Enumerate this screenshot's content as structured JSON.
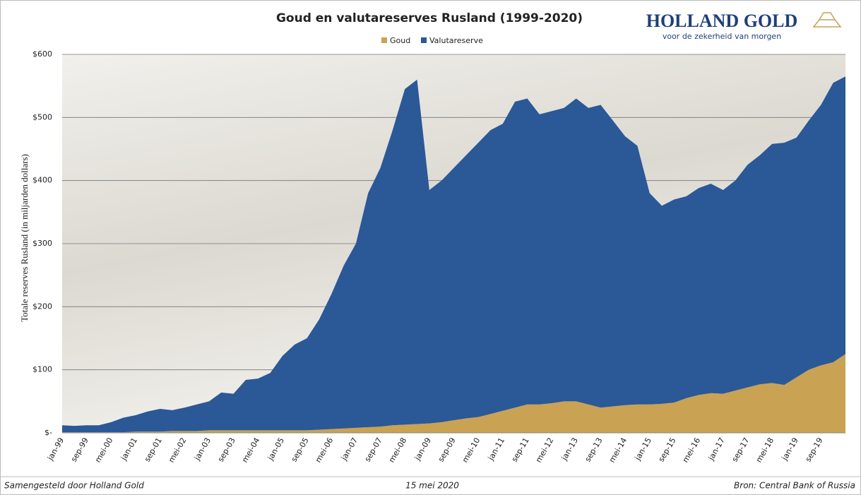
{
  "chart_data": {
    "type": "stacked-area",
    "title": "Goud en valutareserves Rusland (1999-2020)",
    "y_label": "Totale reserves Rusland (in miljarden dollars)",
    "categories": [
      "jan-99",
      null,
      "sep-99",
      null,
      "mei-00",
      null,
      "jan-01",
      null,
      "sep-01",
      null,
      "mei-02",
      null,
      "jan-03",
      null,
      "sep-03",
      null,
      "mei-04",
      null,
      "jan-05",
      null,
      "sep-05",
      null,
      "mei-06",
      null,
      "jan-07",
      null,
      "sep-07",
      null,
      "mei-08",
      null,
      "jan-09",
      null,
      "sep-09",
      null,
      "mei-10",
      null,
      "jan-11",
      null,
      "sep-11",
      null,
      "mei-12",
      null,
      "jan-13",
      null,
      "sep-13",
      null,
      "mei-14",
      null,
      "jan-15",
      null,
      "sep-15",
      null,
      "mei-16",
      null,
      "jan-17",
      null,
      "sep-17",
      null,
      "mei-18",
      null,
      "jan-19",
      null,
      "sep-19",
      null,
      null
    ],
    "series": [
      {
        "name": "Goud",
        "color": "#c9a253",
        "values": [
          1,
          1,
          1,
          1,
          1,
          1,
          2,
          2,
          2,
          3,
          3,
          3,
          4,
          4,
          4,
          4,
          4,
          4,
          4,
          4,
          4,
          5,
          6,
          7,
          8,
          9,
          10,
          12,
          13,
          14,
          15,
          17,
          20,
          23,
          25,
          30,
          35,
          40,
          45,
          45,
          47,
          50,
          50,
          45,
          40,
          42,
          44,
          45,
          45,
          46,
          48,
          55,
          60,
          63,
          62,
          67,
          72,
          77,
          79,
          76,
          88,
          100,
          107,
          112,
          125
        ]
      },
      {
        "name": "Valutareserve",
        "color": "#2b5897",
        "values": [
          11,
          10,
          11,
          11,
          16,
          23,
          26,
          32,
          36,
          33,
          37,
          42,
          46,
          60,
          58,
          80,
          82,
          91,
          118,
          136,
          146,
          175,
          214,
          258,
          292,
          371,
          410,
          468,
          532,
          546,
          370,
          383,
          400,
          417,
          435,
          450,
          455,
          485,
          485,
          460,
          463,
          465,
          480,
          470,
          480,
          453,
          426,
          410,
          335,
          314,
          322,
          320,
          328,
          332,
          323,
          333,
          353,
          363,
          379,
          384,
          380,
          395,
          413,
          443,
          440
        ]
      }
    ],
    "ylim": [
      0,
      600
    ],
    "yticks": [
      {
        "value": 0,
        "label": "$-"
      },
      {
        "value": 100,
        "label": "$100"
      },
      {
        "value": 200,
        "label": "$200"
      },
      {
        "value": 300,
        "label": "$300"
      },
      {
        "value": 400,
        "label": "$400"
      },
      {
        "value": 500,
        "label": "$500"
      },
      {
        "value": 600,
        "label": "$600"
      }
    ],
    "grid": true,
    "legend": "top"
  },
  "logo": {
    "name": "HOLLAND GOLD",
    "tagline": "voor de zekerheid van morgen"
  },
  "footer": {
    "left": "Samengesteld door Holland Gold",
    "center": "15 mei 2020",
    "right": "Bron: Central Bank of Russia"
  }
}
